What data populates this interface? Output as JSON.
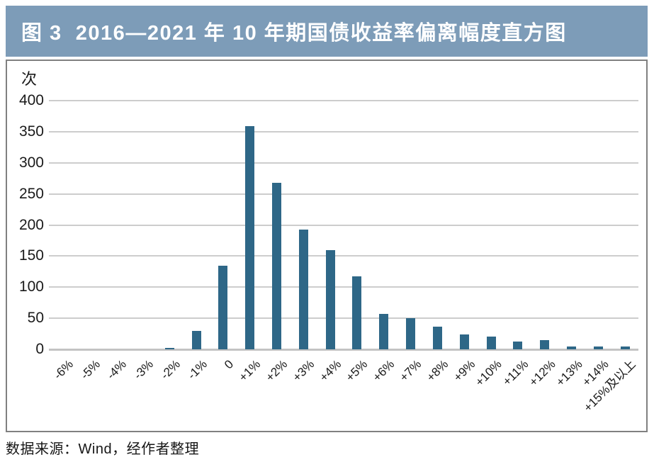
{
  "header": {
    "title": "图 3  2016—2021 年 10 年期国债收益率偏离幅度直方图"
  },
  "source_note": "数据来源：Wind，经作者整理",
  "chart_data": {
    "type": "bar",
    "title": "2016—2021年10年期国债收益率偏离幅度直方图",
    "unit_label": "次",
    "categories": [
      "-6%",
      "-5%",
      "-4%",
      "-3%",
      "-2%",
      "-1%",
      "0",
      "+1%",
      "+2%",
      "+3%",
      "+4%",
      "+5%",
      "+6%",
      "+7%",
      "+8%",
      "+9%",
      "+10%",
      "+11%",
      "+12%",
      "+13%",
      "+14%",
      "+15%及以上"
    ],
    "values": [
      0,
      0,
      0,
      0,
      2,
      30,
      135,
      359,
      268,
      193,
      159,
      117,
      57,
      50,
      37,
      24,
      20,
      13,
      15,
      5,
      4,
      5
    ],
    "xlabel": "",
    "ylabel": "次",
    "ylim": [
      0,
      400
    ],
    "yticks": [
      0,
      50,
      100,
      150,
      200,
      250,
      300,
      350,
      400
    ],
    "grid": true,
    "legend": "none"
  },
  "colors": {
    "title_bar_bg": "#7d9cb8",
    "title_text": "#ffffff",
    "bar": "#2e6787",
    "gridline": "#cdcdcd",
    "axis_line": "#c3c3c3",
    "box_border": "#808080",
    "text": "#1a1a1a"
  }
}
